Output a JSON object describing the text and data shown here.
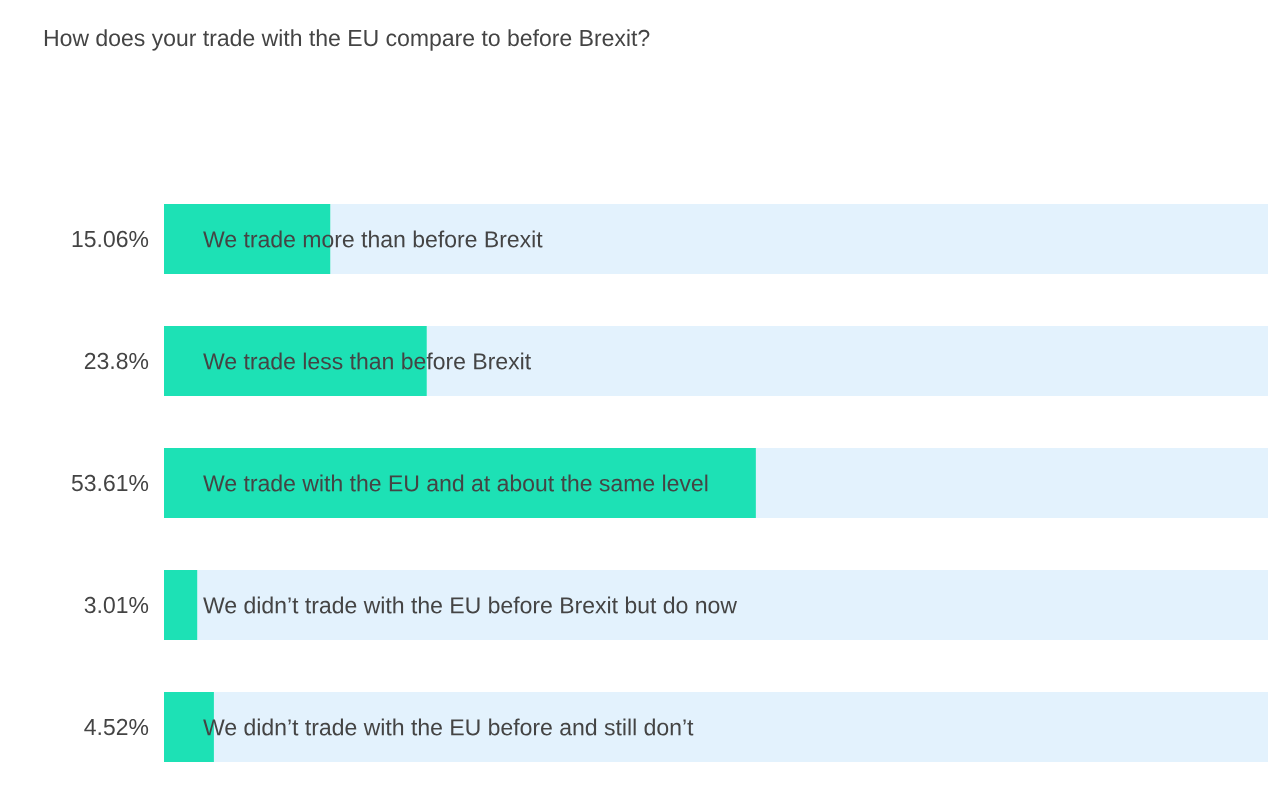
{
  "chart_data": {
    "type": "bar",
    "orientation": "horizontal",
    "stacked": true,
    "title": "How does your trade with the EU compare to before Brexit?",
    "categories": [
      "We trade more than before Brexit",
      "We trade less than before Brexit",
      "We trade with the EU and at about the same level",
      "We didn’t trade with the EU before Brexit but do now",
      "We didn’t trade with the EU before and still don’t"
    ],
    "series": [
      {
        "color": "#1de1b5",
        "values": [
          15.06,
          23.8,
          53.61,
          3.01,
          4.52
        ],
        "value_labels": [
          "15.06%",
          "23.8%",
          "53.61%",
          "3.01%",
          "4.52%"
        ]
      },
      {
        "color": "#e3f2fd",
        "values": [
          84.94,
          76.2,
          46.39,
          96.99,
          95.48
        ]
      }
    ],
    "xlim": [
      0,
      100
    ]
  }
}
